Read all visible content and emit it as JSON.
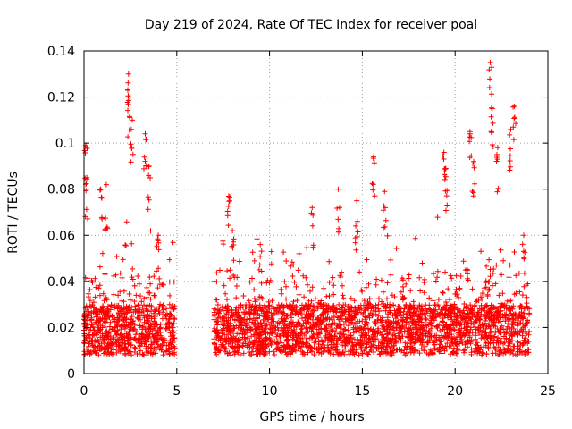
{
  "chart_data": {
    "type": "scatter",
    "title": "Day 219 of 2024, Rate Of TEC Index for receiver poal",
    "xlabel": "GPS time / hours",
    "ylabel": "ROTI / TECUs",
    "xlim": [
      0,
      25
    ],
    "ylim": [
      0,
      0.14
    ],
    "xticks": [
      0,
      5,
      10,
      15,
      20,
      25
    ],
    "yticks": [
      0,
      0.02,
      0.04,
      0.06,
      0.08,
      0.1,
      0.12,
      0.14
    ],
    "xtick_labels": [
      "0",
      "5",
      "10",
      "15",
      "20",
      "25"
    ],
    "ytick_labels": [
      "0",
      "0.02",
      "0.04",
      "0.06",
      "0.08",
      "0.1",
      "0.12",
      "0.14"
    ],
    "grid": true,
    "marker": "+",
    "color": "#ff0000",
    "data_gap_hours": [
      4.9,
      7.0
    ],
    "x_extent_hours": [
      0,
      24
    ],
    "bulk_range": [
      0.008,
      0.03
    ],
    "notable_points": [
      {
        "x": 0.1,
        "y": 0.099
      },
      {
        "x": 0.15,
        "y": 0.085
      },
      {
        "x": 0.9,
        "y": 0.08
      },
      {
        "x": 1.2,
        "y": 0.082
      },
      {
        "x": 2.4,
        "y": 0.13
      },
      {
        "x": 2.4,
        "y": 0.12
      },
      {
        "x": 2.6,
        "y": 0.11
      },
      {
        "x": 3.3,
        "y": 0.104
      },
      {
        "x": 3.5,
        "y": 0.09
      },
      {
        "x": 4.0,
        "y": 0.06
      },
      {
        "x": 7.8,
        "y": 0.077
      },
      {
        "x": 8.0,
        "y": 0.062
      },
      {
        "x": 9.5,
        "y": 0.056
      },
      {
        "x": 12.3,
        "y": 0.072
      },
      {
        "x": 13.7,
        "y": 0.08
      },
      {
        "x": 14.7,
        "y": 0.075
      },
      {
        "x": 15.6,
        "y": 0.094
      },
      {
        "x": 16.2,
        "y": 0.079
      },
      {
        "x": 19.4,
        "y": 0.096
      },
      {
        "x": 19.5,
        "y": 0.089
      },
      {
        "x": 20.8,
        "y": 0.105
      },
      {
        "x": 21.0,
        "y": 0.092
      },
      {
        "x": 21.9,
        "y": 0.135
      },
      {
        "x": 22.0,
        "y": 0.115
      },
      {
        "x": 22.3,
        "y": 0.098
      },
      {
        "x": 23.0,
        "y": 0.106
      },
      {
        "x": 23.2,
        "y": 0.116
      },
      {
        "x": 23.7,
        "y": 0.06
      }
    ]
  }
}
